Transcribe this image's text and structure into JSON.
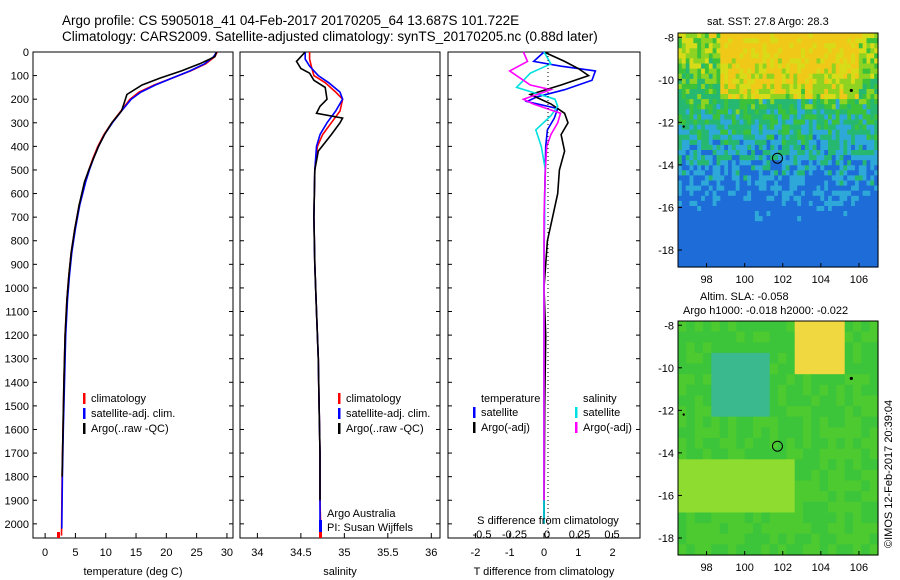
{
  "header": {
    "line1": "Argo profile: CS 5905018_41 04-Feb-2017 20170205_64 13.687S 101.722E",
    "line2": "Climatology: CARS2009. Satellite-adjusted climatology: synTS_20170205.nc (0.88d later)"
  },
  "side_label": "©IMOS 12-Feb-2017 20:39:04",
  "colors": {
    "climatology": "#ff0000",
    "satellite": "#0000ff",
    "argo": "#000000",
    "argo_s": "#ff00ff",
    "sat_s": "#00e0e0"
  },
  "chart_data": [
    {
      "type": "line",
      "xlabel": "temperature (deg C)",
      "ylabel": "",
      "xlim": [
        -2,
        31
      ],
      "ylim": [
        2060,
        0
      ],
      "xticks": [
        "0",
        "5",
        "10",
        "15",
        "20",
        "25",
        "30"
      ],
      "yticks": [
        "0",
        "100",
        "200",
        "300",
        "400",
        "500",
        "600",
        "700",
        "800",
        "900",
        "1000",
        "1100",
        "1200",
        "1300",
        "1400",
        "1500",
        "1600",
        "1700",
        "1800",
        "1900",
        "2000"
      ],
      "legend": [
        "climatology",
        "satellite-adj. clim.",
        "Argo(..raw -QC)"
      ],
      "series": [
        {
          "name": "climatology",
          "color": "#ff0000",
          "x": [
            28.4,
            28.0,
            26.5,
            24.0,
            21.0,
            18.0,
            15.5,
            14.0,
            12.5,
            11.0,
            9.7,
            8.7,
            7.9,
            7.2,
            6.6,
            5.6,
            4.9,
            4.3,
            3.9,
            3.6,
            3.3,
            3.1,
            2.95,
            2.8,
            2.7
          ],
          "y": [
            0,
            20,
            50,
            80,
            110,
            140,
            170,
            200,
            250,
            300,
            350,
            400,
            450,
            500,
            550,
            650,
            750,
            850,
            950,
            1050,
            1200,
            1400,
            1600,
            1800,
            2050
          ]
        },
        {
          "name": "satellite-adj. clim.",
          "color": "#0000ff",
          "x": [
            28.3,
            27.8,
            26.3,
            23.9,
            21.0,
            18.2,
            15.8,
            14.2,
            12.6,
            11.1,
            9.8,
            8.8,
            8.0,
            7.3,
            6.7,
            5.7,
            5.0,
            4.4,
            4.0,
            3.7,
            3.4,
            3.2,
            3.0,
            2.85,
            2.75
          ],
          "y": [
            0,
            20,
            50,
            80,
            110,
            140,
            170,
            200,
            250,
            300,
            350,
            400,
            450,
            500,
            550,
            650,
            750,
            850,
            950,
            1050,
            1200,
            1400,
            1600,
            1800,
            2020
          ]
        },
        {
          "name": "Argo(..raw -QC)",
          "color": "#000000",
          "x": [
            28.3,
            28.0,
            25.5,
            22.5,
            19.0,
            16.0,
            13.5,
            13.0,
            12.6,
            11.0,
            9.8,
            8.8,
            8.0,
            7.2,
            6.5,
            5.6,
            4.9,
            4.3,
            3.9,
            3.6,
            3.3,
            3.1,
            2.95,
            2.8
          ],
          "y": [
            0,
            20,
            50,
            80,
            110,
            140,
            180,
            220,
            250,
            300,
            350,
            400,
            450,
            500,
            550,
            650,
            750,
            850,
            950,
            1050,
            1200,
            1400,
            1600,
            1800
          ]
        }
      ]
    },
    {
      "type": "line",
      "xlabel": "salinity",
      "xlim": [
        33.8,
        36.1
      ],
      "ylim": [
        2060,
        0
      ],
      "xticks": [
        "34",
        "34.5",
        "35",
        "35.5",
        "36"
      ],
      "legend": [
        "climatology",
        "satellite-adj. clim.",
        "Argo(..raw -QC)"
      ],
      "credit1": "Argo Australia",
      "credit2": "PI: Susan Wijffels",
      "series": [
        {
          "name": "climatology",
          "color": "#ff0000",
          "x": [
            34.6,
            34.6,
            34.62,
            34.65,
            34.78,
            34.9,
            34.98,
            34.95,
            34.85,
            34.75,
            34.69,
            34.66,
            34.65,
            34.66,
            34.68,
            34.7,
            34.71,
            34.72,
            34.72,
            34.73
          ],
          "y": [
            0,
            30,
            60,
            100,
            130,
            170,
            200,
            250,
            300,
            350,
            400,
            500,
            700,
            900,
            1100,
            1300,
            1500,
            1700,
            1900,
            2050
          ]
        },
        {
          "name": "satellite-adj. clim.",
          "color": "#0000ff",
          "x": [
            34.55,
            34.55,
            34.6,
            34.7,
            34.82,
            34.95,
            34.98,
            34.9,
            34.8,
            34.72,
            34.68,
            34.66,
            34.65,
            34.66,
            34.68,
            34.7,
            34.71,
            34.72,
            34.72,
            34.72
          ],
          "y": [
            0,
            30,
            60,
            100,
            130,
            170,
            200,
            250,
            300,
            350,
            400,
            500,
            700,
            900,
            1100,
            1300,
            1500,
            1700,
            1900,
            2020
          ]
        },
        {
          "name": "Argo(..raw -QC)",
          "color": "#000000",
          "x": [
            34.55,
            34.45,
            34.5,
            34.6,
            34.65,
            34.78,
            34.8,
            34.72,
            34.68,
            34.98,
            34.95,
            34.85,
            34.7,
            34.66,
            34.65,
            34.66,
            34.68,
            34.7,
            34.71,
            34.72,
            34.72
          ],
          "y": [
            0,
            40,
            70,
            90,
            120,
            150,
            200,
            230,
            260,
            280,
            300,
            350,
            420,
            500,
            700,
            900,
            1100,
            1300,
            1500,
            1700,
            1900
          ]
        }
      ]
    },
    {
      "type": "line",
      "xlabel": "T difference from climatology",
      "toplabel": "S difference from climatology",
      "xlim": [
        -2.8,
        2.8
      ],
      "ylim": [
        2060,
        0
      ],
      "xticks": [
        "-2",
        "-1",
        "0",
        "1",
        "2"
      ],
      "topticks": [
        "-0.5",
        "-0.25",
        "0",
        "0.25",
        "0.5"
      ],
      "legend_title_t": "temperature",
      "legend_title_s": "salinity",
      "legend": [
        "satellite",
        "Argo(-adj)",
        "satellite",
        "Argo(-adj)"
      ],
      "series": [
        {
          "name": "satellite",
          "color": "#0000ff",
          "x": [
            0,
            -0.3,
            0.5,
            1.5,
            1.4,
            0.6,
            -0.2,
            -0.5,
            0.4,
            0.3,
            0.1,
            0.05,
            0.02,
            0,
            0,
            0,
            0
          ],
          "y": [
            0,
            40,
            60,
            80,
            120,
            160,
            190,
            210,
            240,
            280,
            330,
            400,
            600,
            900,
            1200,
            1600,
            2000
          ]
        },
        {
          "name": "Argo(-adj)",
          "color": "#000000",
          "x": [
            0,
            0.6,
            1.0,
            1.3,
            0.5,
            -0.4,
            0.2,
            0.6,
            0.7,
            0.5,
            0.6,
            0.45,
            0.4,
            0.25,
            0.1,
            0.05,
            0.0,
            0.05,
            0.02,
            0
          ],
          "y": [
            0,
            40,
            70,
            100,
            140,
            180,
            220,
            260,
            300,
            350,
            420,
            500,
            600,
            700,
            800,
            900,
            1000,
            1200,
            1500,
            2000
          ]
        },
        {
          "name": "satellite",
          "color": "#00e0e0",
          "x": [
            0,
            0.05,
            -0.1,
            -0.2,
            0.08,
            0.1,
            0.05,
            -0.06,
            -0.02,
            0.01,
            0,
            0,
            0
          ],
          "y": [
            0,
            50,
            90,
            150,
            200,
            230,
            270,
            330,
            400,
            500,
            800,
            1200,
            2000
          ]
        },
        {
          "name": "Argo(-adj)",
          "color": "#ff00ff",
          "x": [
            -0.15,
            -0.12,
            -0.25,
            -0.1,
            0.05,
            -0.15,
            -0.08,
            0.12,
            0.1,
            0.05,
            0.02,
            0.01,
            0,
            0,
            0
          ],
          "y": [
            0,
            40,
            80,
            140,
            160,
            200,
            220,
            260,
            300,
            350,
            400,
            500,
            700,
            1200,
            1900
          ]
        }
      ]
    },
    {
      "type": "heatmap",
      "title": "sat. SST: 27.8 Argo: 28.3",
      "xlim": [
        96.5,
        107
      ],
      "ylim": [
        -18.8,
        -7.8
      ],
      "xticks": [
        "98",
        "100",
        "102",
        "104",
        "106"
      ],
      "yticks": [
        "-8",
        "-10",
        "-12",
        "-14",
        "-16",
        "-18"
      ],
      "marker_lon": 101.722,
      "marker_lat": -13.687
    },
    {
      "type": "heatmap",
      "title": "Altim. SLA: -0.058",
      "subtitle": "Argo h1000: -0.018 h2000: -0.022",
      "xlim": [
        96.5,
        107
      ],
      "ylim": [
        -18.8,
        -7.8
      ],
      "xticks": [
        "98",
        "100",
        "102",
        "104",
        "106"
      ],
      "yticks": [
        "-8",
        "-10",
        "-12",
        "-14",
        "-16",
        "-18"
      ],
      "marker_lon": 101.722,
      "marker_lat": -13.687
    }
  ]
}
